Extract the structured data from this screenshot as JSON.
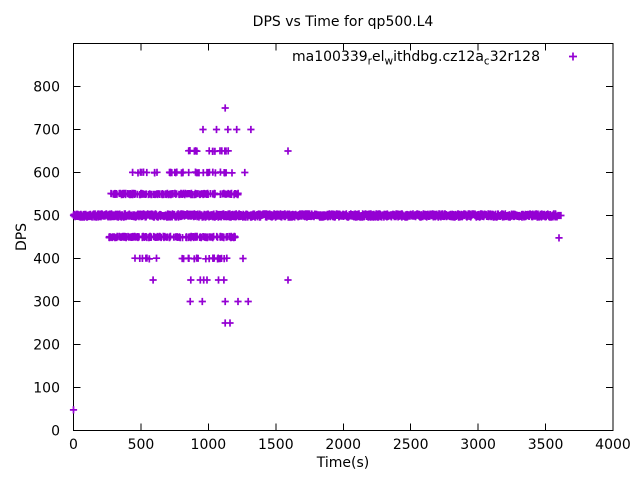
{
  "chart_data": {
    "type": "scatter",
    "title": "DPS vs Time for qp500.L4",
    "xlabel": "Time(s)",
    "ylabel": "DPS",
    "xlim": [
      0,
      4000
    ],
    "ylim": [
      0,
      900
    ],
    "xticks": [
      0,
      500,
      1000,
      1500,
      2000,
      2500,
      3000,
      3500,
      4000
    ],
    "yticks": [
      0,
      100,
      200,
      300,
      400,
      500,
      600,
      700,
      800
    ],
    "grid": false,
    "legend_position": "top-right-inside",
    "marker": "plus",
    "marker_color": "#9400D3",
    "series": [
      {
        "name": "ma100339_rel_withdbg.cz12a_c32r128",
        "label_parts": [
          {
            "text": "ma100339"
          },
          {
            "text": "r",
            "subscript": true
          },
          {
            "text": "el"
          },
          {
            "text": "w",
            "subscript": true
          },
          {
            "text": "ithdbg.cz12a"
          },
          {
            "text": "c",
            "subscript": true
          },
          {
            "text": "32r128"
          }
        ],
        "bands": [
          {
            "dps": 500,
            "t_min": 0,
            "t_max": 3585,
            "count": 1300,
            "jitter_dps": 4,
            "spread": "even"
          },
          {
            "dps": 550,
            "t_min": 275,
            "t_max": 1225,
            "count": 170,
            "jitter_dps": 1.6,
            "spread": "random"
          },
          {
            "dps": 450,
            "t_min": 262,
            "t_max": 1205,
            "count": 170,
            "jitter_dps": 1.6,
            "spread": "random"
          },
          {
            "dps": 600,
            "t_min": 367,
            "t_max": 645,
            "count": 10,
            "jitter_dps": 1,
            "spread": "random"
          },
          {
            "dps": 600,
            "t_min": 700,
            "t_max": 1185,
            "count": 28,
            "jitter_dps": 1,
            "spread": "random"
          },
          {
            "dps": 650,
            "t_min": 850,
            "t_max": 1165,
            "count": 16,
            "jitter_dps": 1,
            "spread": "random"
          },
          {
            "dps": 400,
            "t_min": 415,
            "t_max": 630,
            "count": 7,
            "jitter_dps": 1,
            "spread": "random"
          },
          {
            "dps": 400,
            "t_min": 780,
            "t_max": 1150,
            "count": 20,
            "jitter_dps": 1,
            "spread": "random"
          }
        ],
        "points": [
          [
            0,
            48
          ],
          [
            1125,
            750
          ],
          [
            960,
            700
          ],
          [
            1060,
            700
          ],
          [
            1145,
            700
          ],
          [
            1210,
            700
          ],
          [
            1315,
            700
          ],
          [
            1590,
            650
          ],
          [
            1270,
            600
          ],
          [
            1257,
            400
          ],
          [
            590,
            350
          ],
          [
            870,
            350
          ],
          [
            940,
            350
          ],
          [
            965,
            350
          ],
          [
            990,
            350
          ],
          [
            1075,
            350
          ],
          [
            1115,
            350
          ],
          [
            1590,
            350
          ],
          [
            865,
            300
          ],
          [
            955,
            300
          ],
          [
            1125,
            300
          ],
          [
            1220,
            300
          ],
          [
            1295,
            300
          ],
          [
            1125,
            250
          ],
          [
            1160,
            250
          ],
          [
            3592,
            500
          ],
          [
            3600,
            500
          ],
          [
            3607,
            500
          ],
          [
            3614,
            500
          ],
          [
            3600,
            448
          ]
        ]
      }
    ]
  }
}
